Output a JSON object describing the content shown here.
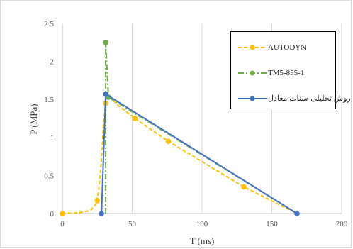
{
  "chart_data": {
    "type": "line",
    "xlabel": "T (ms)",
    "ylabel": "P (MPa)",
    "xlim": [
      0,
      200
    ],
    "ylim": [
      0,
      2.5
    ],
    "x_ticks": [
      0,
      50,
      100,
      150,
      200
    ],
    "y_ticks": [
      0,
      0.5,
      1,
      1.5,
      2,
      2.5
    ],
    "y_tick_labels": [
      "0",
      "0.5",
      "1",
      "1.5",
      "2",
      "2.5"
    ],
    "grid": "vertical",
    "legend_position": "top-right",
    "series": [
      {
        "name": "AUTODYN",
        "color": "#FFC000",
        "style": "dashed",
        "curve": [
          [
            0,
            0
          ],
          [
            12,
            0.01
          ],
          [
            20,
            0.04
          ],
          [
            24,
            0.12
          ],
          [
            26,
            0.3
          ],
          [
            28,
            0.7
          ],
          [
            29.5,
            1.2
          ],
          [
            31,
            1.45
          ],
          [
            33,
            1.55
          ],
          [
            40,
            1.42
          ],
          [
            52,
            1.25
          ],
          [
            76,
            0.95
          ],
          [
            130,
            0.35
          ],
          [
            168,
            0
          ]
        ],
        "points": [
          [
            0,
            0
          ],
          [
            25,
            0.17
          ],
          [
            31,
            1.45
          ],
          [
            52,
            1.25
          ],
          [
            76,
            0.95
          ],
          [
            130,
            0.35
          ],
          [
            168,
            0
          ]
        ]
      },
      {
        "name": "TM5-855-1",
        "color": "#70AD47",
        "style": "dash-dot",
        "curve": [
          [
            31,
            0
          ],
          [
            31,
            2.25
          ],
          [
            33,
            1.53
          ],
          [
            168,
            0
          ]
        ],
        "points": [
          [
            31,
            2.25
          ],
          [
            33,
            1.53
          ]
        ]
      },
      {
        "name": "روش تحلیلی-سنات معادل",
        "color": "#4472C4",
        "style": "solid",
        "curve": [
          [
            28,
            0
          ],
          [
            31,
            1.57
          ],
          [
            168,
            0
          ]
        ],
        "points": [
          [
            28,
            0
          ],
          [
            31,
            1.57
          ],
          [
            168,
            0
          ]
        ]
      }
    ]
  }
}
